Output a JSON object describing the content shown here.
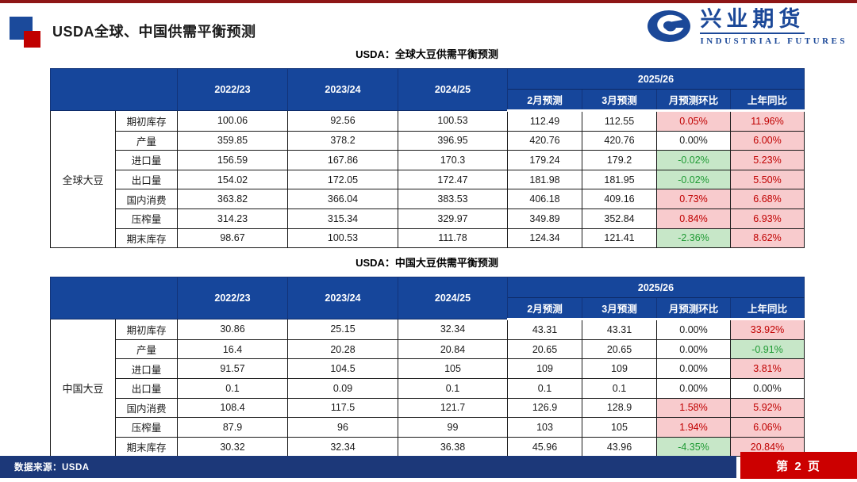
{
  "page": {
    "title": "USDA全球、中国供需平衡预测",
    "footer_source": "数据来源：USDA",
    "footer_page": "第 2 页"
  },
  "logo": {
    "cn": "兴业期货",
    "en": "INDUSTRIAL FUTURES"
  },
  "colors": {
    "header_blue": "#16469B",
    "footer_navy": "#1C3879",
    "accent_red": "#C00000",
    "top_strip_maroon": "#8E1616",
    "positive_bg_pink": "#F8CBCD",
    "positive_text_red": "#C00000",
    "negative_bg_green": "#C7E7C8",
    "negative_text_green": "#1F9A34",
    "logo_blue": "#1B4898"
  },
  "tables": [
    {
      "caption": "USDA：全球大豆供需平衡预测",
      "group_label": "全球大豆",
      "year_headers": [
        "2022/23",
        "2023/24",
        "2024/25"
      ],
      "span_header": "2025/26",
      "sub_headers": [
        "2月预测",
        "3月预测",
        "月预测环比",
        "上年同比"
      ],
      "rows": [
        {
          "label": "期初库存",
          "values": [
            "100.06",
            "92.56",
            "100.53",
            "112.49",
            "112.55"
          ],
          "mom": "0.05%",
          "mom_style": "up",
          "yoy": "11.96%",
          "yoy_style": "up"
        },
        {
          "label": "产量",
          "values": [
            "359.85",
            "378.2",
            "396.95",
            "420.76",
            "420.76"
          ],
          "mom": "0.00%",
          "mom_style": "flat",
          "yoy": "6.00%",
          "yoy_style": "up"
        },
        {
          "label": "进口量",
          "values": [
            "156.59",
            "167.86",
            "170.3",
            "179.24",
            "179.2"
          ],
          "mom": "-0.02%",
          "mom_style": "down",
          "yoy": "5.23%",
          "yoy_style": "up"
        },
        {
          "label": "出口量",
          "values": [
            "154.02",
            "172.05",
            "172.47",
            "181.98",
            "181.95"
          ],
          "mom": "-0.02%",
          "mom_style": "down",
          "yoy": "5.50%",
          "yoy_style": "up"
        },
        {
          "label": "国内消费",
          "values": [
            "363.82",
            "366.04",
            "383.53",
            "406.18",
            "409.16"
          ],
          "mom": "0.73%",
          "mom_style": "up",
          "yoy": "6.68%",
          "yoy_style": "up"
        },
        {
          "label": "压榨量",
          "values": [
            "314.23",
            "315.34",
            "329.97",
            "349.89",
            "352.84"
          ],
          "mom": "0.84%",
          "mom_style": "up",
          "yoy": "6.93%",
          "yoy_style": "up"
        },
        {
          "label": "期末库存",
          "values": [
            "98.67",
            "100.53",
            "111.78",
            "124.34",
            "121.41"
          ],
          "mom": "-2.36%",
          "mom_style": "down",
          "yoy": "8.62%",
          "yoy_style": "up"
        }
      ]
    },
    {
      "caption": "USDA：中国大豆供需平衡预测",
      "group_label": "中国大豆",
      "year_headers": [
        "2022/23",
        "2023/24",
        "2024/25"
      ],
      "span_header": "2025/26",
      "sub_headers": [
        "2月预测",
        "3月预测",
        "月预测环比",
        "上年同比"
      ],
      "rows": [
        {
          "label": "期初库存",
          "values": [
            "30.86",
            "25.15",
            "32.34",
            "43.31",
            "43.31"
          ],
          "mom": "0.00%",
          "mom_style": "flat",
          "yoy": "33.92%",
          "yoy_style": "up"
        },
        {
          "label": "产量",
          "values": [
            "16.4",
            "20.28",
            "20.84",
            "20.65",
            "20.65"
          ],
          "mom": "0.00%",
          "mom_style": "flat",
          "yoy": "-0.91%",
          "yoy_style": "down"
        },
        {
          "label": "进口量",
          "values": [
            "91.57",
            "104.5",
            "105",
            "109",
            "109"
          ],
          "mom": "0.00%",
          "mom_style": "flat",
          "yoy": "3.81%",
          "yoy_style": "up"
        },
        {
          "label": "出口量",
          "values": [
            "0.1",
            "0.09",
            "0.1",
            "0.1",
            "0.1"
          ],
          "mom": "0.00%",
          "mom_style": "flat",
          "yoy": "0.00%",
          "yoy_style": "flat"
        },
        {
          "label": "国内消费",
          "values": [
            "108.4",
            "117.5",
            "121.7",
            "126.9",
            "128.9"
          ],
          "mom": "1.58%",
          "mom_style": "up",
          "yoy": "5.92%",
          "yoy_style": "up"
        },
        {
          "label": "压榨量",
          "values": [
            "87.9",
            "96",
            "99",
            "103",
            "105"
          ],
          "mom": "1.94%",
          "mom_style": "up",
          "yoy": "6.06%",
          "yoy_style": "up"
        },
        {
          "label": "期末库存",
          "values": [
            "30.32",
            "32.34",
            "36.38",
            "45.96",
            "43.96"
          ],
          "mom": "-4.35%",
          "mom_style": "down",
          "yoy": "20.84%",
          "yoy_style": "up"
        }
      ]
    }
  ]
}
